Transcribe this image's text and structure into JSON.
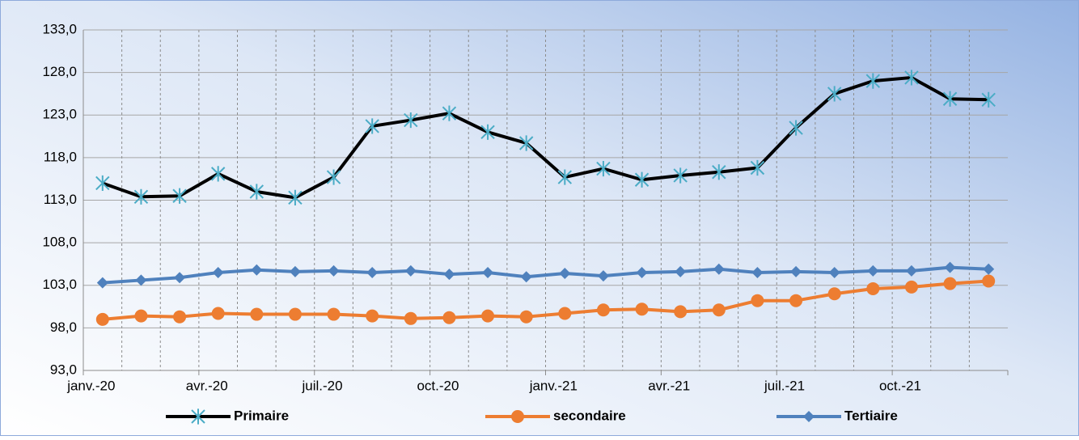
{
  "chart_data": {
    "type": "line",
    "categories": [
      "janv.-20",
      null,
      null,
      "avr.-20",
      null,
      null,
      "juil.-20",
      null,
      null,
      "oct.-20",
      null,
      null,
      "janv.-21",
      null,
      null,
      "avr.-21",
      null,
      null,
      "juil.-21",
      null,
      null,
      "oct.-21",
      null,
      null
    ],
    "series": [
      {
        "name": "Primaire",
        "color": "#000000",
        "marker_color": "#4bacc6",
        "marker": "asterisk",
        "values": [
          115.0,
          113.4,
          113.5,
          116.1,
          114.0,
          113.3,
          115.7,
          121.7,
          122.4,
          123.2,
          121.0,
          119.7,
          115.7,
          116.7,
          115.4,
          115.9,
          116.3,
          116.8,
          121.5,
          125.5,
          127.0,
          127.4,
          124.9,
          124.8
        ]
      },
      {
        "name": "secondaire",
        "color": "#ed7d31",
        "marker_color": "#ed7d31",
        "marker": "circle",
        "values": [
          99.0,
          99.4,
          99.3,
          99.7,
          99.6,
          99.6,
          99.6,
          99.4,
          99.1,
          99.2,
          99.4,
          99.3,
          99.7,
          100.1,
          100.2,
          99.9,
          100.1,
          101.2,
          101.2,
          102.0,
          102.6,
          102.8,
          103.2,
          103.5
        ]
      },
      {
        "name": "Tertiaire",
        "color": "#4f81bd",
        "marker_color": "#4f81bd",
        "marker": "diamond",
        "values": [
          103.3,
          103.6,
          103.9,
          104.5,
          104.8,
          104.6,
          104.7,
          104.5,
          104.7,
          104.3,
          104.5,
          104.0,
          104.4,
          104.1,
          104.5,
          104.6,
          104.9,
          104.5,
          104.6,
          104.5,
          104.7,
          104.7,
          105.1,
          104.9
        ]
      }
    ],
    "ylim": [
      93,
      133
    ],
    "yticks": [
      {
        "value": 93,
        "label": "93,0"
      },
      {
        "value": 98,
        "label": "98,0"
      },
      {
        "value": 103,
        "label": "103,0"
      },
      {
        "value": 108,
        "label": "108,0"
      },
      {
        "value": 113,
        "label": "113,0"
      },
      {
        "value": 118,
        "label": "118,0"
      },
      {
        "value": 123,
        "label": "123,0"
      },
      {
        "value": 128,
        "label": "128,0"
      },
      {
        "value": 133,
        "label": "133,0"
      }
    ],
    "grid": true,
    "legend": "bottom"
  }
}
